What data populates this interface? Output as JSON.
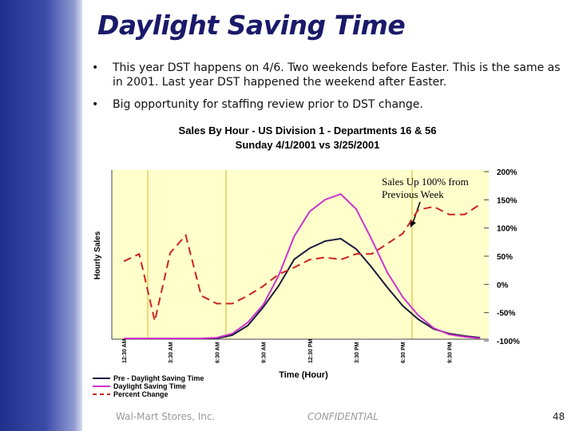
{
  "title": "Daylight Saving Time",
  "bullets": [
    "This year DST happens on 4/6.  Two weekends before Easter.  This is the same as in 2001.  Last year DST happened the weekend after Easter.",
    "Big opportunity for staffing review prior to DST change."
  ],
  "chart_data": {
    "type": "line",
    "title": "Sales By Hour - US Division 1  - Departments 16 & 56",
    "subtitle": "Sunday 4/1/2001 vs 3/25/2001",
    "x_label": "Time (Hour)",
    "y_label": "Hourly Sales",
    "annotation": "Sales Up 100% from Previous Week",
    "categories": [
      "12:30 AM",
      null,
      null,
      "3:30 AM",
      null,
      null,
      "6:30 AM",
      null,
      null,
      "9:30 AM",
      null,
      null,
      "12:30 PM",
      null,
      null,
      "3:30 PM",
      null,
      null,
      "6:30 PM",
      null,
      null,
      "9:30 PM",
      null,
      null
    ],
    "ylim": [
      0,
      100
    ],
    "y2lim": [
      -100,
      200
    ],
    "y2ticks": [
      {
        "value": 200,
        "label": "200%"
      },
      {
        "value": 150,
        "label": "150%"
      },
      {
        "value": 100,
        "label": "100%"
      },
      {
        "value": 50,
        "label": "50%"
      },
      {
        "value": 0,
        "label": "0%"
      },
      {
        "value": -50,
        "label": "-50%"
      },
      {
        "value": -100,
        "label": "-100%"
      }
    ],
    "series": [
      {
        "name": "Pre - Daylight Saving Time",
        "color": "#1a1a40",
        "values": [
          0.5,
          0.5,
          0.5,
          0.5,
          0.5,
          0.5,
          0.5,
          2.4,
          8.0,
          18.9,
          31.6,
          47.2,
          53.8,
          58.0,
          59.4,
          53.3,
          42.5,
          30.7,
          19.8,
          11.8,
          6.1,
          3.3,
          1.9,
          0.9
        ]
      },
      {
        "name": "Daylight Saving Time",
        "color": "#cc33cc",
        "values": [
          0.5,
          0.5,
          0.5,
          0.5,
          0.5,
          0.5,
          0.9,
          3.3,
          9.9,
          20.3,
          37.7,
          60.8,
          75.5,
          82.5,
          85.8,
          76.9,
          59.0,
          39.6,
          25.0,
          14.2,
          6.6,
          2.8,
          1.4,
          0.5
        ]
      },
      {
        "name": "Percent Change",
        "color": "#cc2222",
        "axis": "y2",
        "dashed": true,
        "values": [
          41,
          54,
          -65,
          56,
          87,
          -20,
          -34,
          -34,
          -20,
          -3,
          18,
          30,
          44,
          48,
          44,
          54,
          54,
          72,
          90,
          132,
          138,
          124,
          124,
          142
        ]
      }
    ]
  },
  "footer": {
    "company": "Wal-Mart Stores, Inc.",
    "label": "CONFIDENTIAL",
    "page": "48"
  }
}
